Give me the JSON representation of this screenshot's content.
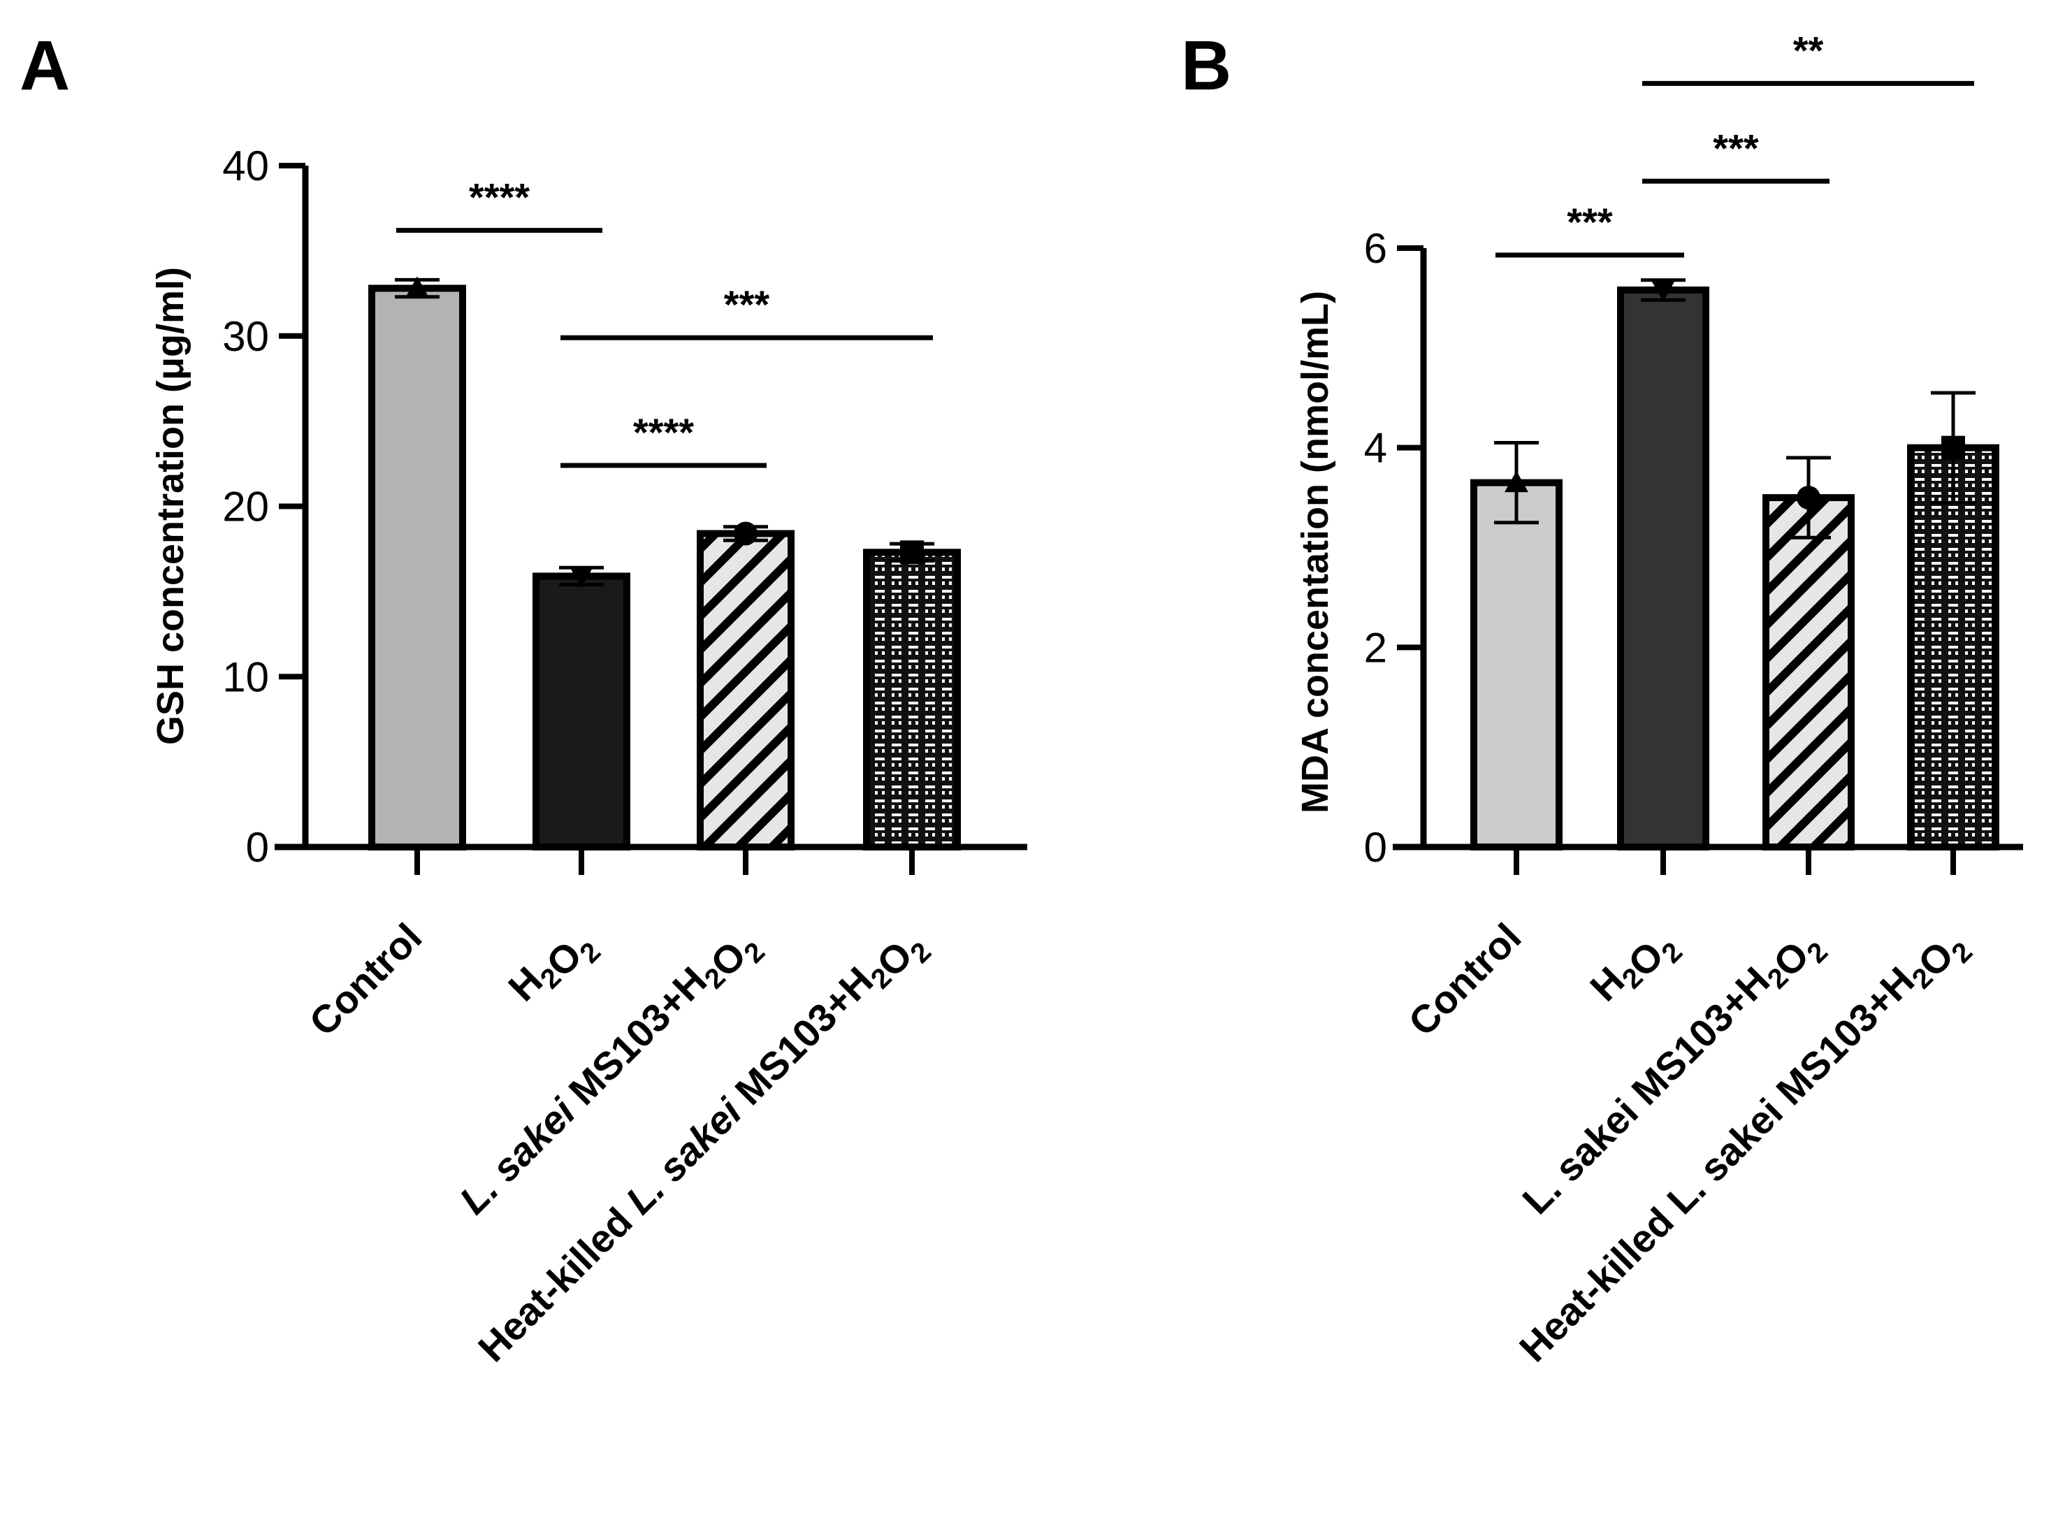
{
  "colors": {
    "axis": "#000000",
    "control_gsh": "#b3b3b3",
    "h2o2_gsh": "#1a1a1a",
    "control_mda": "#cccccc",
    "h2o2_mda": "#333333",
    "hatch_bg": "#e6e6e6",
    "pattern_bg": "#111111"
  },
  "chart_data": [
    {
      "panel": "A",
      "type": "bar",
      "title": "",
      "xlabel": "",
      "ylabel": "GSH concentration (μg/ml)",
      "ylim": [
        0,
        40
      ],
      "yticks": [
        0,
        10,
        20,
        30,
        40
      ],
      "categories": [
        {
          "parts": [
            {
              "t": "Control"
            }
          ]
        },
        {
          "parts": [
            {
              "t": "H"
            },
            {
              "t": "2",
              "sub": true
            },
            {
              "t": "O"
            },
            {
              "t": "2",
              "sub": true
            }
          ]
        },
        {
          "parts": [
            {
              "t": "L. sakei",
              "italic": true
            },
            {
              "t": " MS103+H"
            },
            {
              "t": "2",
              "sub": true
            },
            {
              "t": "O"
            },
            {
              "t": "2",
              "sub": true
            }
          ]
        },
        {
          "parts": [
            {
              "t": "Heat-killed "
            },
            {
              "t": "L. sakei",
              "italic": true
            },
            {
              "t": " MS103+H"
            },
            {
              "t": "2",
              "sub": true
            },
            {
              "t": "O"
            },
            {
              "t": "2",
              "sub": true
            }
          ]
        }
      ],
      "values": [
        32.8,
        15.9,
        18.4,
        17.3
      ],
      "errors": [
        0.5,
        0.5,
        0.4,
        0.5
      ],
      "markers": [
        "triangle-up",
        "triangle-down",
        "circle",
        "square"
      ],
      "fills": [
        "solid-light",
        "solid-dark",
        "hatch",
        "grid"
      ],
      "significance": [
        {
          "from": 0,
          "to": 1,
          "label": "****",
          "y": 36.2
        },
        {
          "from": 1,
          "to": 3,
          "label": "***",
          "y": 29.9
        },
        {
          "from": 1,
          "to": 2,
          "label": "****",
          "y": 22.4
        }
      ]
    },
    {
      "panel": "B",
      "type": "bar",
      "title": "",
      "xlabel": "",
      "ylabel": "MDA concentation (nmol/mL)",
      "ylim": [
        0,
        6
      ],
      "yticks": [
        0,
        2,
        4,
        6
      ],
      "categories": [
        {
          "parts": [
            {
              "t": "Control"
            }
          ]
        },
        {
          "parts": [
            {
              "t": "H"
            },
            {
              "t": "2",
              "sub": true
            },
            {
              "t": "O"
            },
            {
              "t": "2",
              "sub": true
            }
          ]
        },
        {
          "parts": [
            {
              "t": "L. sakei MS103+H"
            },
            {
              "t": "2",
              "sub": true
            },
            {
              "t": "O"
            },
            {
              "t": "2",
              "sub": true
            }
          ]
        },
        {
          "parts": [
            {
              "t": "Heat-killed L. sakei MS103+H"
            },
            {
              "t": "2",
              "sub": true
            },
            {
              "t": "O"
            },
            {
              "t": "2",
              "sub": true
            }
          ]
        }
      ],
      "values": [
        3.65,
        5.58,
        3.5,
        4.0
      ],
      "errors": [
        0.4,
        0.1,
        0.4,
        0.55
      ],
      "markers": [
        "triangle-up",
        "triangle-down",
        "circle",
        "square"
      ],
      "fills": [
        "solid-light",
        "solid-dark",
        "hatch",
        "grid"
      ],
      "significance": [
        {
          "from": 0,
          "to": 1,
          "label": "***",
          "y": 5.93
        },
        {
          "from": 1,
          "to": 2,
          "label": "***",
          "y": 6.67
        },
        {
          "from": 1,
          "to": 3,
          "label": "**",
          "y": 7.65
        }
      ]
    }
  ]
}
